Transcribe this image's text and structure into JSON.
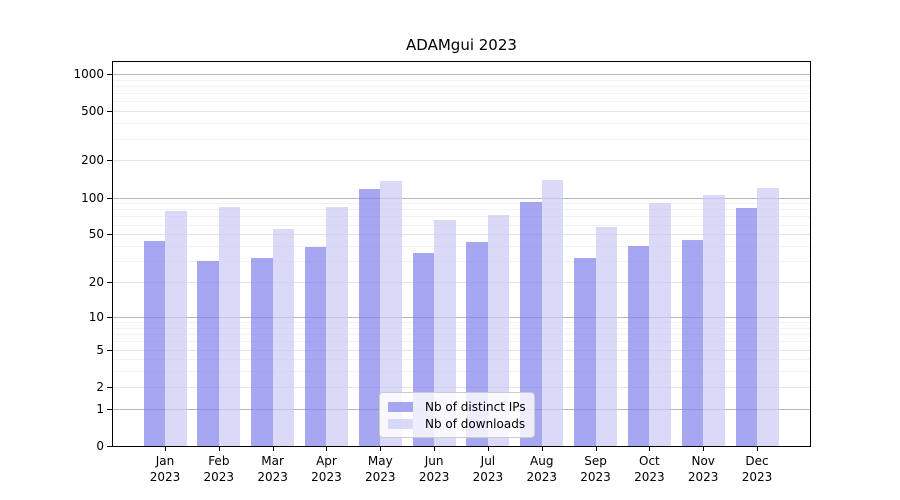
{
  "title": "ADAMgui 2023",
  "chart_data": {
    "type": "bar",
    "title": "ADAMgui 2023",
    "categories": [
      "Jan 2023",
      "Feb 2023",
      "Mar 2023",
      "Apr 2023",
      "May 2023",
      "Jun 2023",
      "Jul 2023",
      "Aug 2023",
      "Sep 2023",
      "Oct 2023",
      "Nov 2023",
      "Dec 2023"
    ],
    "series": [
      {
        "name": "Nb of distinct IPs",
        "values": [
          44,
          30,
          32,
          39,
          118,
          35,
          43,
          92,
          32,
          40,
          45,
          82
        ],
        "color": "rgba(130,130,235,0.7)"
      },
      {
        "name": "Nb of downloads",
        "values": [
          78,
          84,
          55,
          83,
          135,
          65,
          72,
          138,
          57,
          90,
          105,
          119
        ],
        "color": "rgba(202,202,245,0.7)"
      }
    ],
    "yscale": "log1p",
    "y_ticks": [
      0,
      1,
      2,
      5,
      10,
      20,
      50,
      100,
      200,
      500,
      1000
    ],
    "y_minor_ticks": [
      3,
      4,
      6,
      7,
      8,
      9,
      30,
      40,
      60,
      70,
      80,
      90,
      300,
      400,
      600,
      700,
      800,
      900
    ],
    "ylim": [
      0,
      1270
    ],
    "grid": true,
    "legend_position": "lower center",
    "xlabel": "",
    "ylabel": ""
  },
  "legend": {
    "items": [
      {
        "label": "Nb of distinct IPs"
      },
      {
        "label": "Nb of downloads"
      }
    ]
  },
  "colors": {
    "bar_distinct_ips": "#a8a8f0",
    "bar_downloads": "#dadaf8",
    "grid_major": "#b8b8b8",
    "grid_mid": "#e4e4e4",
    "grid_minor": "#f2f2f2",
    "axis": "#000000",
    "background": "#ffffff"
  }
}
